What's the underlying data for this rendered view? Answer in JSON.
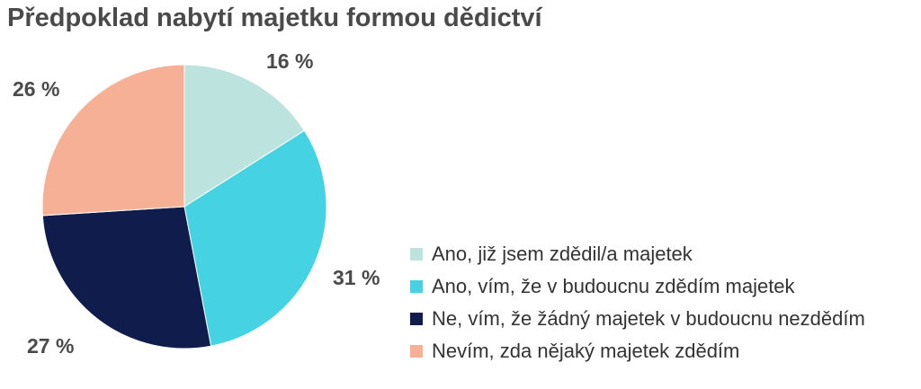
{
  "chart_data": {
    "type": "pie",
    "title": "Předpoklad nabytí majetku formou dědictví",
    "unit": "%",
    "categories": [
      "Ano, již jsem zdědil/a majetek",
      "Ano, vím, že v budoucnu zdědím majetek",
      "Ne, vím, že žádný majetek v budoucnu nezdědím",
      "Nevím, zda nějaký majetek zdědím"
    ],
    "values": [
      16,
      31,
      27,
      26
    ],
    "labels": [
      "16 %",
      "31 %",
      "27 %",
      "26 %"
    ],
    "colors": [
      "#bde3df",
      "#45d3e3",
      "#101c4c",
      "#f5b096"
    ],
    "legend_position": "bottom-right"
  }
}
